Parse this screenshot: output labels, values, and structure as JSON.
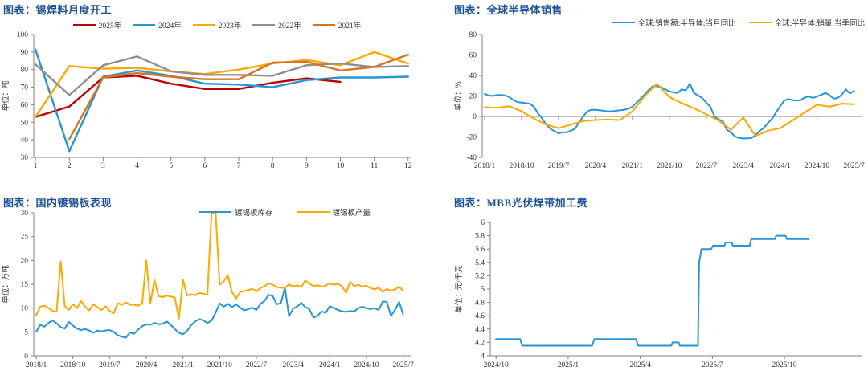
{
  "page": {
    "background": "#ffffff",
    "text_color": "#333333",
    "title_color": "#1f5399",
    "axis_color": "#808080"
  },
  "chart_data": [
    {
      "type": "line",
      "title": "图表：锡焊料月度开工",
      "ylabel": "单位：吨",
      "legend_position": "top-center",
      "grid": false,
      "x": {
        "min": 0.95,
        "max": 12.1,
        "ticks": [
          [
            1,
            "1"
          ],
          [
            2,
            "2"
          ],
          [
            3,
            "3"
          ],
          [
            4,
            "4"
          ],
          [
            5,
            "5"
          ],
          [
            6,
            "6"
          ],
          [
            7,
            "7"
          ],
          [
            8,
            "8"
          ],
          [
            9,
            "9"
          ],
          [
            10,
            "10"
          ],
          [
            11,
            "11"
          ],
          [
            12,
            "12"
          ]
        ]
      },
      "y": {
        "min": 30,
        "max": 100,
        "ticks": [
          [
            30,
            "30"
          ],
          [
            40,
            "40"
          ],
          [
            50,
            "50"
          ],
          [
            60,
            "60"
          ],
          [
            70,
            "70"
          ],
          [
            80,
            "80"
          ],
          [
            90,
            "90"
          ],
          [
            100,
            "100"
          ]
        ]
      },
      "series": [
        {
          "name": "2025年",
          "color": "#c00000",
          "points": [
            [
              1,
              53
            ],
            [
              2,
              59
            ],
            [
              3,
              75.5
            ],
            [
              4,
              76.5
            ],
            [
              5,
              72
            ],
            [
              6,
              69
            ],
            [
              7,
              69
            ],
            [
              8,
              72.5
            ],
            [
              9,
              75
            ],
            [
              10,
              73
            ]
          ]
        },
        {
          "name": "2024年",
          "color": "#2796d6",
          "points": [
            [
              1,
              91.5
            ],
            [
              2,
              33.5
            ],
            [
              3,
              76
            ],
            [
              4,
              79.5
            ],
            [
              5,
              76.5
            ],
            [
              6,
              72
            ],
            [
              7,
              71.5
            ],
            [
              8,
              70
            ],
            [
              9,
              74
            ],
            [
              10,
              75.5
            ],
            [
              11,
              75.5
            ],
            [
              12,
              76
            ]
          ]
        },
        {
          "name": "2023年",
          "color": "#ffa800",
          "points": [
            [
              1,
              53
            ],
            [
              2,
              82
            ],
            [
              3,
              80.5
            ],
            [
              4,
              81
            ],
            [
              5,
              79
            ],
            [
              6,
              77.5
            ],
            [
              7,
              80
            ],
            [
              8,
              83.5
            ],
            [
              9,
              85.5
            ],
            [
              10,
              82.5
            ],
            [
              11,
              90
            ],
            [
              12,
              83.5
            ]
          ]
        },
        {
          "name": "2022年",
          "color": "#8f8f8f",
          "points": [
            [
              1,
              83
            ],
            [
              2,
              65.5
            ],
            [
              3,
              82.5
            ],
            [
              4,
              87.5
            ],
            [
              5,
              79
            ],
            [
              6,
              77
            ],
            [
              7,
              77
            ],
            [
              8,
              76.5
            ],
            [
              9,
              82.5
            ],
            [
              10,
              83.5
            ],
            [
              11,
              81.5
            ],
            [
              12,
              82
            ]
          ]
        },
        {
          "name": "2021年",
          "color": "#d9731f",
          "points": [
            [
              2,
              40.5
            ],
            [
              3,
              75.5
            ],
            [
              4,
              78
            ],
            [
              5,
              76
            ],
            [
              6,
              74.5
            ],
            [
              7,
              74.5
            ],
            [
              8,
              84
            ],
            [
              9,
              84.5
            ],
            [
              10,
              79.5
            ],
            [
              11,
              81.5
            ],
            [
              12,
              88.5
            ]
          ]
        }
      ]
    },
    {
      "type": "line",
      "title": "图表：全球半导体销售",
      "ylabel": "单位：%",
      "legend_position": "top-right",
      "grid": false,
      "x_axis_at": 0,
      "x": {
        "min": 2017.95,
        "max": 2025.67,
        "ticks": [
          [
            2018,
            "2018/1"
          ],
          [
            2018.75,
            "2018/10"
          ],
          [
            2019.5,
            "2019/7"
          ],
          [
            2020.25,
            "2020/4"
          ],
          [
            2021,
            "2021/1"
          ],
          [
            2021.75,
            "2021/10"
          ],
          [
            2022.5,
            "2022/7"
          ],
          [
            2023.25,
            "2023/4"
          ],
          [
            2024,
            "2024/1"
          ],
          [
            2024.75,
            "2024/10"
          ],
          [
            2025.5,
            "2025/7"
          ]
        ]
      },
      "y": {
        "min": -40,
        "max": 80,
        "ticks": [
          [
            -40,
            "-40"
          ],
          [
            -20,
            "-20"
          ],
          [
            0,
            "0"
          ],
          [
            20,
            "20"
          ],
          [
            40,
            "40"
          ],
          [
            60,
            "60"
          ],
          [
            80,
            "80"
          ]
        ]
      },
      "series": [
        {
          "name": "全球:销售额:半导体:当月同比",
          "color": "#2796d6",
          "start_x": 2018.0,
          "step": 0.08333,
          "values": [
            22,
            20.5,
            20,
            21,
            21,
            20.5,
            19,
            16,
            14,
            13.5,
            13,
            12.5,
            9.5,
            3,
            -2,
            -8,
            -12,
            -14.5,
            -16.5,
            -15.5,
            -15.5,
            -14,
            -12,
            -6,
            0,
            5,
            6.5,
            6.5,
            6,
            5.5,
            5,
            5,
            5.5,
            6,
            6.5,
            7.5,
            9.5,
            13.5,
            17.5,
            21.5,
            26,
            29.5,
            29.5,
            28.5,
            26.5,
            24.5,
            23.5,
            23,
            26.5,
            25.5,
            32,
            23,
            20.5,
            18,
            13.5,
            9.5,
            0,
            -3,
            -4.5,
            -13,
            -15.5,
            -19.5,
            -21,
            -21.5,
            -21.5,
            -21,
            -18.5,
            -14,
            -11.5,
            -6.5,
            -2.5,
            4,
            10,
            15.5,
            17,
            16,
            15.5,
            16,
            18.5,
            19.5,
            18,
            19.5,
            21,
            23,
            21,
            17.5,
            18,
            21,
            26.5,
            22.5,
            25
          ]
        },
        {
          "name": "全球:半导体:销量:当季同比",
          "color": "#ffa800",
          "start_x": 2018.0,
          "step": 0.25,
          "values": [
            9,
            8.5,
            10,
            5,
            -2,
            -8,
            -11.5,
            -8,
            -4.5,
            -3.5,
            -3,
            -3.5,
            5,
            20,
            32,
            19,
            13,
            8,
            2,
            -4,
            -13,
            -1,
            -19,
            -14,
            -11.5,
            -4,
            4,
            11.5,
            9.5,
            12.5,
            12
          ]
        }
      ]
    },
    {
      "type": "line",
      "title": "图表：国内镀锡板表现",
      "ylabel": "单位：万吨",
      "legend_position": "top-center-inside",
      "grid": false,
      "x": {
        "min": 2017.95,
        "max": 2025.67,
        "ticks": [
          [
            2018,
            "2018/1"
          ],
          [
            2018.75,
            "2018/10"
          ],
          [
            2019.5,
            "2019/7"
          ],
          [
            2020.25,
            "2020/4"
          ],
          [
            2021,
            "2021/1"
          ],
          [
            2021.75,
            "2021/10"
          ],
          [
            2022.5,
            "2022/7"
          ],
          [
            2023.25,
            "2023/4"
          ],
          [
            2024,
            "2024/1"
          ],
          [
            2024.75,
            "2024/10"
          ],
          [
            2025.5,
            "2025/7"
          ]
        ]
      },
      "y": {
        "min": 0,
        "max": 30,
        "ticks": [
          [
            0,
            "0"
          ],
          [
            5,
            "5"
          ],
          [
            10,
            "10"
          ],
          [
            15,
            "15"
          ],
          [
            20,
            "20"
          ],
          [
            25,
            "25"
          ],
          [
            30,
            "30"
          ]
        ]
      },
      "series": [
        {
          "name": "镀锡板库存",
          "color": "#2796d6",
          "start_x": 2018.0,
          "step": 0.08333,
          "values": [
            5.0,
            6.5,
            6.1,
            6.9,
            7.4,
            6.8,
            6.0,
            5.7,
            7.1,
            6.3,
            5.7,
            5.4,
            5.6,
            5.3,
            4.8,
            5.3,
            5.1,
            5.3,
            5.4,
            5.0,
            4.3,
            4.0,
            3.8,
            4.9,
            4.6,
            5.5,
            6.2,
            6.6,
            6.5,
            6.9,
            6.6,
            6.7,
            7.2,
            6.5,
            5.6,
            4.8,
            4.5,
            5.2,
            6.4,
            7.2,
            7.7,
            7.4,
            6.9,
            7.4,
            9.0,
            11.0,
            10.3,
            10.9,
            10.2,
            10.8,
            10.1,
            9.5,
            9.8,
            10.1,
            9.6,
            10.9,
            11.5,
            12.8,
            12.5,
            10.8,
            11.0,
            14.3,
            8.3,
            9.9,
            10.3,
            11.1,
            10.2,
            9.8,
            8.0,
            8.4,
            9.3,
            9.0,
            10.4,
            10.0,
            9.6,
            9.3,
            9.2,
            9.4,
            9.3,
            10.0,
            10.3,
            10.0,
            9.8,
            10.0,
            9.6,
            11.4,
            11.3,
            8.4,
            9.6,
            11.3,
            8.7
          ]
        },
        {
          "name": "镀锡板产量",
          "color": "#ffa800",
          "start_x": 2018.0,
          "step": 0.08333,
          "values": [
            8.5,
            10.3,
            10.5,
            10.0,
            9.4,
            9.2,
            19.8,
            10.4,
            9.6,
            10.8,
            10.0,
            11.5,
            10.3,
            9.5,
            10.8,
            10.2,
            9.6,
            10.4,
            9.4,
            8.9,
            11.0,
            10.7,
            11.2,
            10.7,
            10.7,
            10.5,
            11.0,
            20.0,
            11.0,
            15.9,
            12.5,
            12.3,
            12.6,
            12.4,
            12.2,
            7.8,
            16.0,
            12.6,
            12.9,
            12.7,
            13.2,
            13.0,
            12.8,
            30.0,
            30.0,
            14.9,
            15.6,
            16.9,
            13.4,
            12.0,
            13.3,
            13.6,
            13.8,
            14.0,
            13.5,
            14.2,
            14.6,
            15.2,
            14.9,
            14.4,
            14.3,
            14.2,
            15.0,
            14.5,
            14.8,
            14.4,
            15.8,
            15.1,
            14.6,
            14.8,
            14.5,
            14.7,
            15.2,
            14.9,
            15.1,
            14.6,
            13.2,
            15.5,
            14.6,
            14.9,
            14.5,
            14.7,
            14.2,
            13.9,
            14.3,
            13.4,
            14.0,
            13.6,
            13.9,
            14.5,
            13.6
          ]
        }
      ]
    },
    {
      "type": "line",
      "title": "图表：MBB光伏焊带加工费",
      "ylabel": "单位：元/千克",
      "legend_position": "none",
      "grid": false,
      "x": {
        "min": 2024.73,
        "max": 2026.02,
        "ticks": [
          [
            2024.75,
            "2024/10"
          ],
          [
            2025,
            "2025/1"
          ],
          [
            2025.25,
            "2025/4"
          ],
          [
            2025.5,
            "2025/7"
          ],
          [
            2025.75,
            "2025/10"
          ]
        ]
      },
      "y": {
        "min": 4,
        "max": 6,
        "ticks": [
          [
            4,
            "4"
          ],
          [
            4.2,
            "4.2"
          ],
          [
            4.4,
            "4.4"
          ],
          [
            4.6,
            "4.6"
          ],
          [
            4.8,
            "4.8"
          ],
          [
            5,
            "5"
          ],
          [
            5.2,
            "5.2"
          ],
          [
            5.4,
            "5.4"
          ],
          [
            5.6,
            "5.6"
          ],
          [
            5.8,
            "5.8"
          ],
          [
            6,
            "6"
          ]
        ]
      },
      "series": [
        {
          "name": "MBB光伏焊带加工费",
          "color": "#2796d6",
          "points": [
            [
              2024.75,
              4.25
            ],
            [
              2024.833,
              4.25
            ],
            [
              2024.841,
              4.15
            ],
            [
              2025.083,
              4.15
            ],
            [
              2025.091,
              4.25
            ],
            [
              2025.235,
              4.25
            ],
            [
              2025.243,
              4.15
            ],
            [
              2025.358,
              4.15
            ],
            [
              2025.362,
              4.2
            ],
            [
              2025.383,
              4.2
            ],
            [
              2025.387,
              4.15
            ],
            [
              2025.45,
              4.15
            ],
            [
              2025.454,
              5.4
            ],
            [
              2025.462,
              5.6
            ],
            [
              2025.496,
              5.6
            ],
            [
              2025.502,
              5.65
            ],
            [
              2025.542,
              5.65
            ],
            [
              2025.546,
              5.7
            ],
            [
              2025.567,
              5.7
            ],
            [
              2025.571,
              5.65
            ],
            [
              2025.629,
              5.65
            ],
            [
              2025.635,
              5.75
            ],
            [
              2025.717,
              5.75
            ],
            [
              2025.721,
              5.8
            ],
            [
              2025.754,
              5.8
            ],
            [
              2025.758,
              5.75
            ],
            [
              2025.833,
              5.75
            ]
          ]
        }
      ]
    }
  ]
}
